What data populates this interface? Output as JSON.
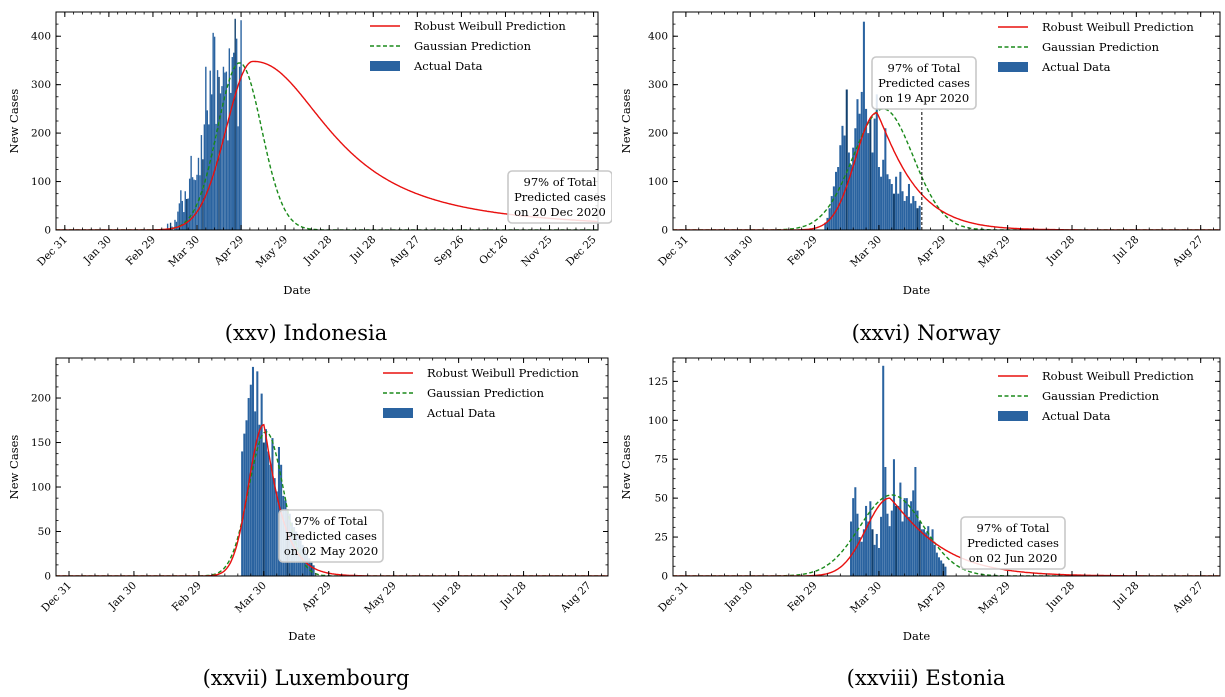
{
  "chart_data": [
    {
      "type": "bar",
      "caption": "(xxv) Indonesia",
      "xlabel": "Date",
      "ylabel": "New Cases",
      "x_range_days": [
        -7,
        362
      ],
      "ylim": [
        0,
        450
      ],
      "yticks": [
        0,
        100,
        200,
        300,
        400
      ],
      "xticks": [
        "Dec 31",
        "Jan 30",
        "Feb 29",
        "Mar 30",
        "Apr 29",
        "May 29",
        "Jun 28",
        "Jul 28",
        "Aug 27",
        "Sep 26",
        "Oct 26",
        "Nov 25",
        "Dec 25"
      ],
      "legend": [
        "Robust Weibull Prediction",
        "Gaussian Prediction",
        "Actual Data"
      ],
      "legend_position": "top-right",
      "annotation": [
        "97% of Total",
        "Predicted cases",
        "on 20 Dec 2020"
      ],
      "bars": {
        "start": "Mar 02",
        "values": [
          2,
          0,
          0,
          0,
          0,
          2,
          0,
          2,
          13,
          0,
          15,
          7,
          0,
          21,
          17,
          38,
          55,
          82,
          60,
          37,
          80,
          64,
          65,
          106,
          153,
          109,
          104,
          103,
          114,
          149,
          113,
          196,
          146,
          218,
          337,
          247,
          218,
          329,
          280,
          407,
          399,
          219,
          330,
          316,
          282,
          297,
          337,
          325,
          327,
          185,
          375,
          283,
          357,
          366,
          436,
          395,
          214,
          337,
          433
        ]
      },
      "weibull": {
        "peak": "May 07",
        "peak_value": 348,
        "end": "Dec 28",
        "end_value": 10
      },
      "gaussian": {
        "peak": "Apr 28",
        "peak_value": 345
      }
    },
    {
      "type": "bar",
      "caption": "(xxvi) Norway",
      "xlabel": "Date",
      "ylabel": "New Cases",
      "x_range_days": [
        -7,
        248
      ],
      "ylim": [
        0,
        450
      ],
      "yticks": [
        0,
        100,
        200,
        300,
        400
      ],
      "xticks": [
        "Dec 31",
        "Jan 30",
        "Feb 29",
        "Mar 30",
        "Apr 29",
        "May 29",
        "Jun 28",
        "Jul 28",
        "Aug 27"
      ],
      "legend": [
        "Robust Weibull Prediction",
        "Gaussian Prediction",
        "Actual Data"
      ],
      "legend_position": "top-right",
      "annotation": [
        "97% of Total",
        "Predicted cases",
        "on 19 Apr 2020"
      ],
      "bars": {
        "start": "Mar 05",
        "values": [
          15,
          25,
          45,
          70,
          90,
          120,
          130,
          175,
          215,
          195,
          290,
          160,
          135,
          170,
          210,
          270,
          240,
          285,
          430,
          250,
          200,
          230,
          160,
          230,
          280,
          130,
          110,
          145,
          210,
          115,
          105,
          95,
          75,
          110,
          75,
          120,
          80,
          60,
          70,
          95,
          55,
          70,
          60,
          45,
          50
        ]
      },
      "weibull": {
        "peak": "Mar 29",
        "peak_value": 242
      },
      "gaussian": {
        "peak": "Apr 01",
        "peak_value": 250
      }
    },
    {
      "type": "bar",
      "caption": "(xxvii) Luxembourg",
      "xlabel": "Date",
      "ylabel": "New Cases",
      "x_range_days": [
        -7,
        248
      ],
      "ylim": [
        0,
        245
      ],
      "yticks": [
        0,
        50,
        100,
        150,
        200
      ],
      "xticks": [
        "Dec 31",
        "Jan 30",
        "Feb 29",
        "Mar 30",
        "Apr 29",
        "May 29",
        "Jun 28",
        "Jul 28",
        "Aug 27"
      ],
      "legend": [
        "Robust Weibull Prediction",
        "Gaussian Prediction",
        "Actual Data"
      ],
      "legend_position": "top-right",
      "annotation": [
        "97% of Total",
        "Predicted cases",
        "on 02 May 2020"
      ],
      "bars": {
        "start": "Mar 20",
        "values": [
          140,
          160,
          175,
          200,
          215,
          235,
          185,
          230,
          170,
          205,
          150,
          165,
          140,
          125,
          155,
          110,
          95,
          145,
          125,
          90,
          85,
          75,
          70,
          60,
          55,
          50,
          45,
          40,
          35,
          30,
          25,
          20,
          15,
          12
        ]
      },
      "weibull": {
        "peak": "Mar 30",
        "peak_value": 170
      },
      "gaussian": {
        "peak": "Mar 31",
        "peak_value": 162
      }
    },
    {
      "type": "bar",
      "caption": "(xxviii) Estonia",
      "xlabel": "Date",
      "ylabel": "New Cases",
      "x_range_days": [
        -7,
        248
      ],
      "ylim": [
        0,
        140
      ],
      "yticks": [
        0,
        25,
        50,
        75,
        100,
        125
      ],
      "xticks": [
        "Dec 31",
        "Jan 30",
        "Feb 29",
        "Mar 30",
        "Apr 29",
        "May 29",
        "Jun 28",
        "Jul 28",
        "Aug 27"
      ],
      "legend": [
        "Robust Weibull Prediction",
        "Gaussian Prediction",
        "Actual Data"
      ],
      "legend_position": "top-right",
      "annotation": [
        "97% of Total",
        "Predicted cases",
        "on 02 Jun 2020"
      ],
      "bars": {
        "start": "Mar 17",
        "values": [
          35,
          50,
          57,
          40,
          25,
          22,
          30,
          45,
          35,
          48,
          30,
          20,
          27,
          18,
          38,
          135,
          70,
          40,
          32,
          42,
          75,
          45,
          45,
          60,
          35,
          50,
          50,
          38,
          48,
          55,
          70,
          42,
          35,
          30,
          30,
          28,
          32,
          25,
          30,
          20,
          15,
          12,
          10,
          8,
          6
        ]
      },
      "weibull": {
        "peak": "Apr 04",
        "peak_value": 50
      },
      "gaussian": {
        "peak": "Apr 05",
        "peak_value": 52
      }
    }
  ],
  "colors": {
    "weibull": "#e8100f",
    "gaussian": "#1a8a1a",
    "bars": "#2a63a0",
    "bars_dark": "#12406e"
  }
}
